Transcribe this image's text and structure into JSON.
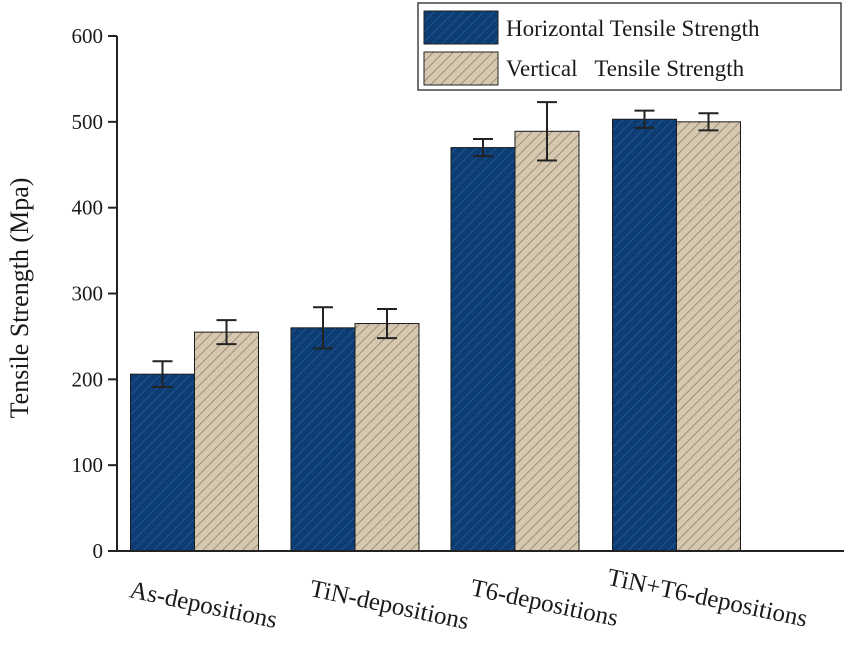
{
  "chart_data": {
    "type": "bar",
    "title": "",
    "xlabel": "",
    "ylabel": "Tensile Strength (Mpa)",
    "ylim": [
      0,
      600
    ],
    "yticks": [
      0,
      100,
      200,
      300,
      400,
      500,
      600
    ],
    "categories": [
      "As-depositions",
      "TiN-depositions",
      "T6-depositions",
      "TiN+T6-depositions"
    ],
    "series": [
      {
        "name": "Horizontal Tensile Strength",
        "values": [
          206,
          260,
          470,
          503
        ],
        "errors": [
          15,
          24,
          10,
          10
        ],
        "color": "#0d3c73",
        "hatch_color": "#1f5494"
      },
      {
        "name": "Vertical   Tensile Strength",
        "values": [
          255,
          265,
          489,
          500
        ],
        "errors": [
          14,
          17,
          34,
          10
        ],
        "color": "#d6c8b0",
        "hatch_color": "#8e7f6a"
      }
    ],
    "legend_position": "top-right",
    "grid": false
  }
}
